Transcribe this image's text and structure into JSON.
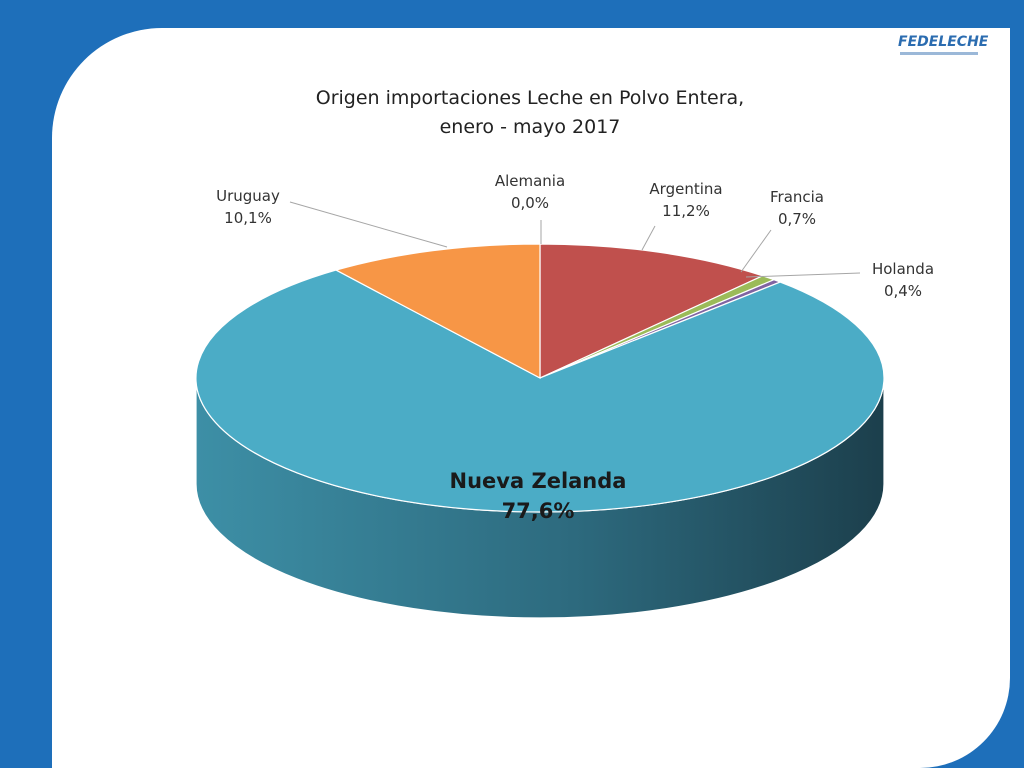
{
  "slide": {
    "background_color": "#1e6fba",
    "logo": {
      "text": "FEDELECHE"
    }
  },
  "chart_data": {
    "type": "pie",
    "title_lines": [
      "Origen importaciones Leche en Polvo Entera,",
      "enero - mayo 2017"
    ],
    "three_d": true,
    "slices": [
      {
        "name": "Alemania",
        "label": "0,0%",
        "value": 0.0,
        "color": "#4f81bd"
      },
      {
        "name": "Argentina",
        "label": "11,2%",
        "value": 11.2,
        "color": "#c0504d"
      },
      {
        "name": "Francia",
        "label": "0,7%",
        "value": 0.7,
        "color": "#9bbb59"
      },
      {
        "name": "Holanda",
        "label": "0,4%",
        "value": 0.4,
        "color": "#8064a2"
      },
      {
        "name": "Nueva Zelanda",
        "label": "77,6%",
        "value": 77.6,
        "color": "#4bacc6"
      },
      {
        "name": "Uruguay",
        "label": "10,1%",
        "value": 10.1,
        "color": "#f79646"
      }
    ]
  }
}
